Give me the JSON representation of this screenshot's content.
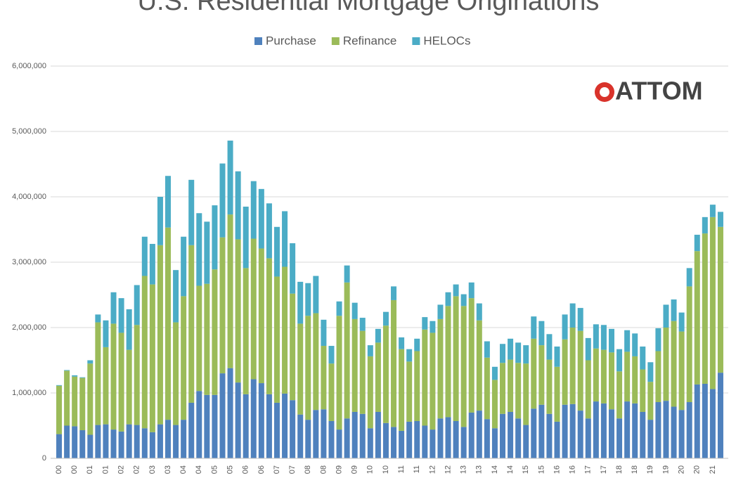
{
  "chart_data": {
    "type": "stacked_bar",
    "title": "U.S. Residential Mortgage Originations",
    "logo": "ATTOM",
    "categories": [
      "00",
      null,
      "00",
      null,
      "01",
      null,
      "01",
      null,
      "02",
      null,
      "02",
      null,
      "03",
      null,
      "03",
      null,
      "04",
      null,
      "04",
      null,
      "05",
      null,
      "05",
      null,
      "06",
      null,
      "06",
      null,
      "07",
      null,
      "07",
      null,
      "08",
      null,
      "08",
      null,
      "09",
      null,
      "09",
      null,
      "10",
      null,
      "10",
      null,
      "11",
      null,
      "11",
      null,
      "12",
      null,
      "12",
      null,
      "13",
      null,
      "13",
      null,
      "14",
      null,
      "14",
      null,
      "15",
      null,
      "15",
      null,
      "16",
      null,
      "16",
      null,
      "17",
      null,
      "17",
      null,
      "18",
      null,
      "18",
      null,
      "19",
      null,
      "19",
      null,
      "20",
      null,
      "20",
      null,
      "21",
      null
    ],
    "series": [
      {
        "name": "Purchase",
        "color": "#4f81bd",
        "values": [
          370000,
          500000,
          490000,
          430000,
          360000,
          510000,
          520000,
          440000,
          410000,
          520000,
          510000,
          460000,
          400000,
          520000,
          590000,
          510000,
          590000,
          850000,
          1030000,
          970000,
          970000,
          1300000,
          1380000,
          1160000,
          980000,
          1210000,
          1150000,
          980000,
          850000,
          990000,
          890000,
          670000,
          590000,
          740000,
          750000,
          570000,
          440000,
          610000,
          710000,
          680000,
          460000,
          710000,
          540000,
          480000,
          420000,
          560000,
          570000,
          500000,
          440000,
          610000,
          630000,
          570000,
          480000,
          700000,
          730000,
          600000,
          460000,
          680000,
          710000,
          610000,
          510000,
          760000,
          820000,
          680000,
          560000,
          820000,
          830000,
          730000,
          610000,
          870000,
          840000,
          750000,
          610000,
          870000,
          840000,
          710000,
          590000,
          860000,
          880000,
          790000,
          740000,
          860000,
          1130000,
          1140000,
          1060000,
          1310000
        ]
      },
      {
        "name": "Refinance",
        "color": "#9bbb59",
        "values": [
          740000,
          840000,
          760000,
          800000,
          1090000,
          1570000,
          1180000,
          1620000,
          1510000,
          1140000,
          1530000,
          2330000,
          2260000,
          2740000,
          2940000,
          1570000,
          1890000,
          2410000,
          1610000,
          1700000,
          1920000,
          2080000,
          2350000,
          2190000,
          1930000,
          2150000,
          2060000,
          2080000,
          1930000,
          1940000,
          1630000,
          1390000,
          1590000,
          1480000,
          970000,
          880000,
          1740000,
          2080000,
          1420000,
          1270000,
          1100000,
          1060000,
          1490000,
          1940000,
          1250000,
          920000,
          1070000,
          1470000,
          1480000,
          1520000,
          1700000,
          1910000,
          1850000,
          1750000,
          1380000,
          940000,
          740000,
          780000,
          800000,
          850000,
          940000,
          1070000,
          910000,
          830000,
          840000,
          1000000,
          1170000,
          1220000,
          890000,
          810000,
          820000,
          870000,
          720000,
          760000,
          720000,
          650000,
          580000,
          780000,
          1120000,
          1310000,
          1200000,
          1770000,
          2040000,
          2300000,
          2630000,
          2230000
        ]
      },
      {
        "name": "HELOCs",
        "color": "#4bacc6",
        "values": [
          10000,
          10000,
          20000,
          10000,
          50000,
          120000,
          410000,
          480000,
          530000,
          620000,
          610000,
          600000,
          620000,
          740000,
          790000,
          800000,
          910000,
          1000000,
          1110000,
          950000,
          980000,
          1130000,
          1130000,
          1040000,
          940000,
          880000,
          910000,
          840000,
          760000,
          850000,
          770000,
          640000,
          500000,
          570000,
          400000,
          270000,
          220000,
          260000,
          250000,
          200000,
          170000,
          210000,
          210000,
          210000,
          180000,
          190000,
          190000,
          190000,
          180000,
          220000,
          210000,
          180000,
          180000,
          240000,
          260000,
          250000,
          200000,
          290000,
          320000,
          310000,
          280000,
          340000,
          370000,
          390000,
          310000,
          380000,
          370000,
          350000,
          340000,
          370000,
          380000,
          360000,
          340000,
          330000,
          350000,
          350000,
          300000,
          350000,
          350000,
          330000,
          290000,
          280000,
          250000,
          250000,
          190000,
          230000
        ]
      }
    ],
    "ylim": [
      0,
      6000000
    ],
    "yticks": [
      0,
      {
        "value": 1000000,
        "label": "1,000,000"
      },
      {
        "value": 2000000,
        "label": "2,000,000"
      },
      {
        "value": 3000000,
        "label": "3,000,000"
      },
      {
        "value": 4000000,
        "label": "4,000,000"
      },
      {
        "value": 5000000,
        "label": "5,000,000"
      },
      {
        "value": 6000000,
        "label": "6,000,000"
      }
    ],
    "grid": true,
    "legend": "top"
  }
}
